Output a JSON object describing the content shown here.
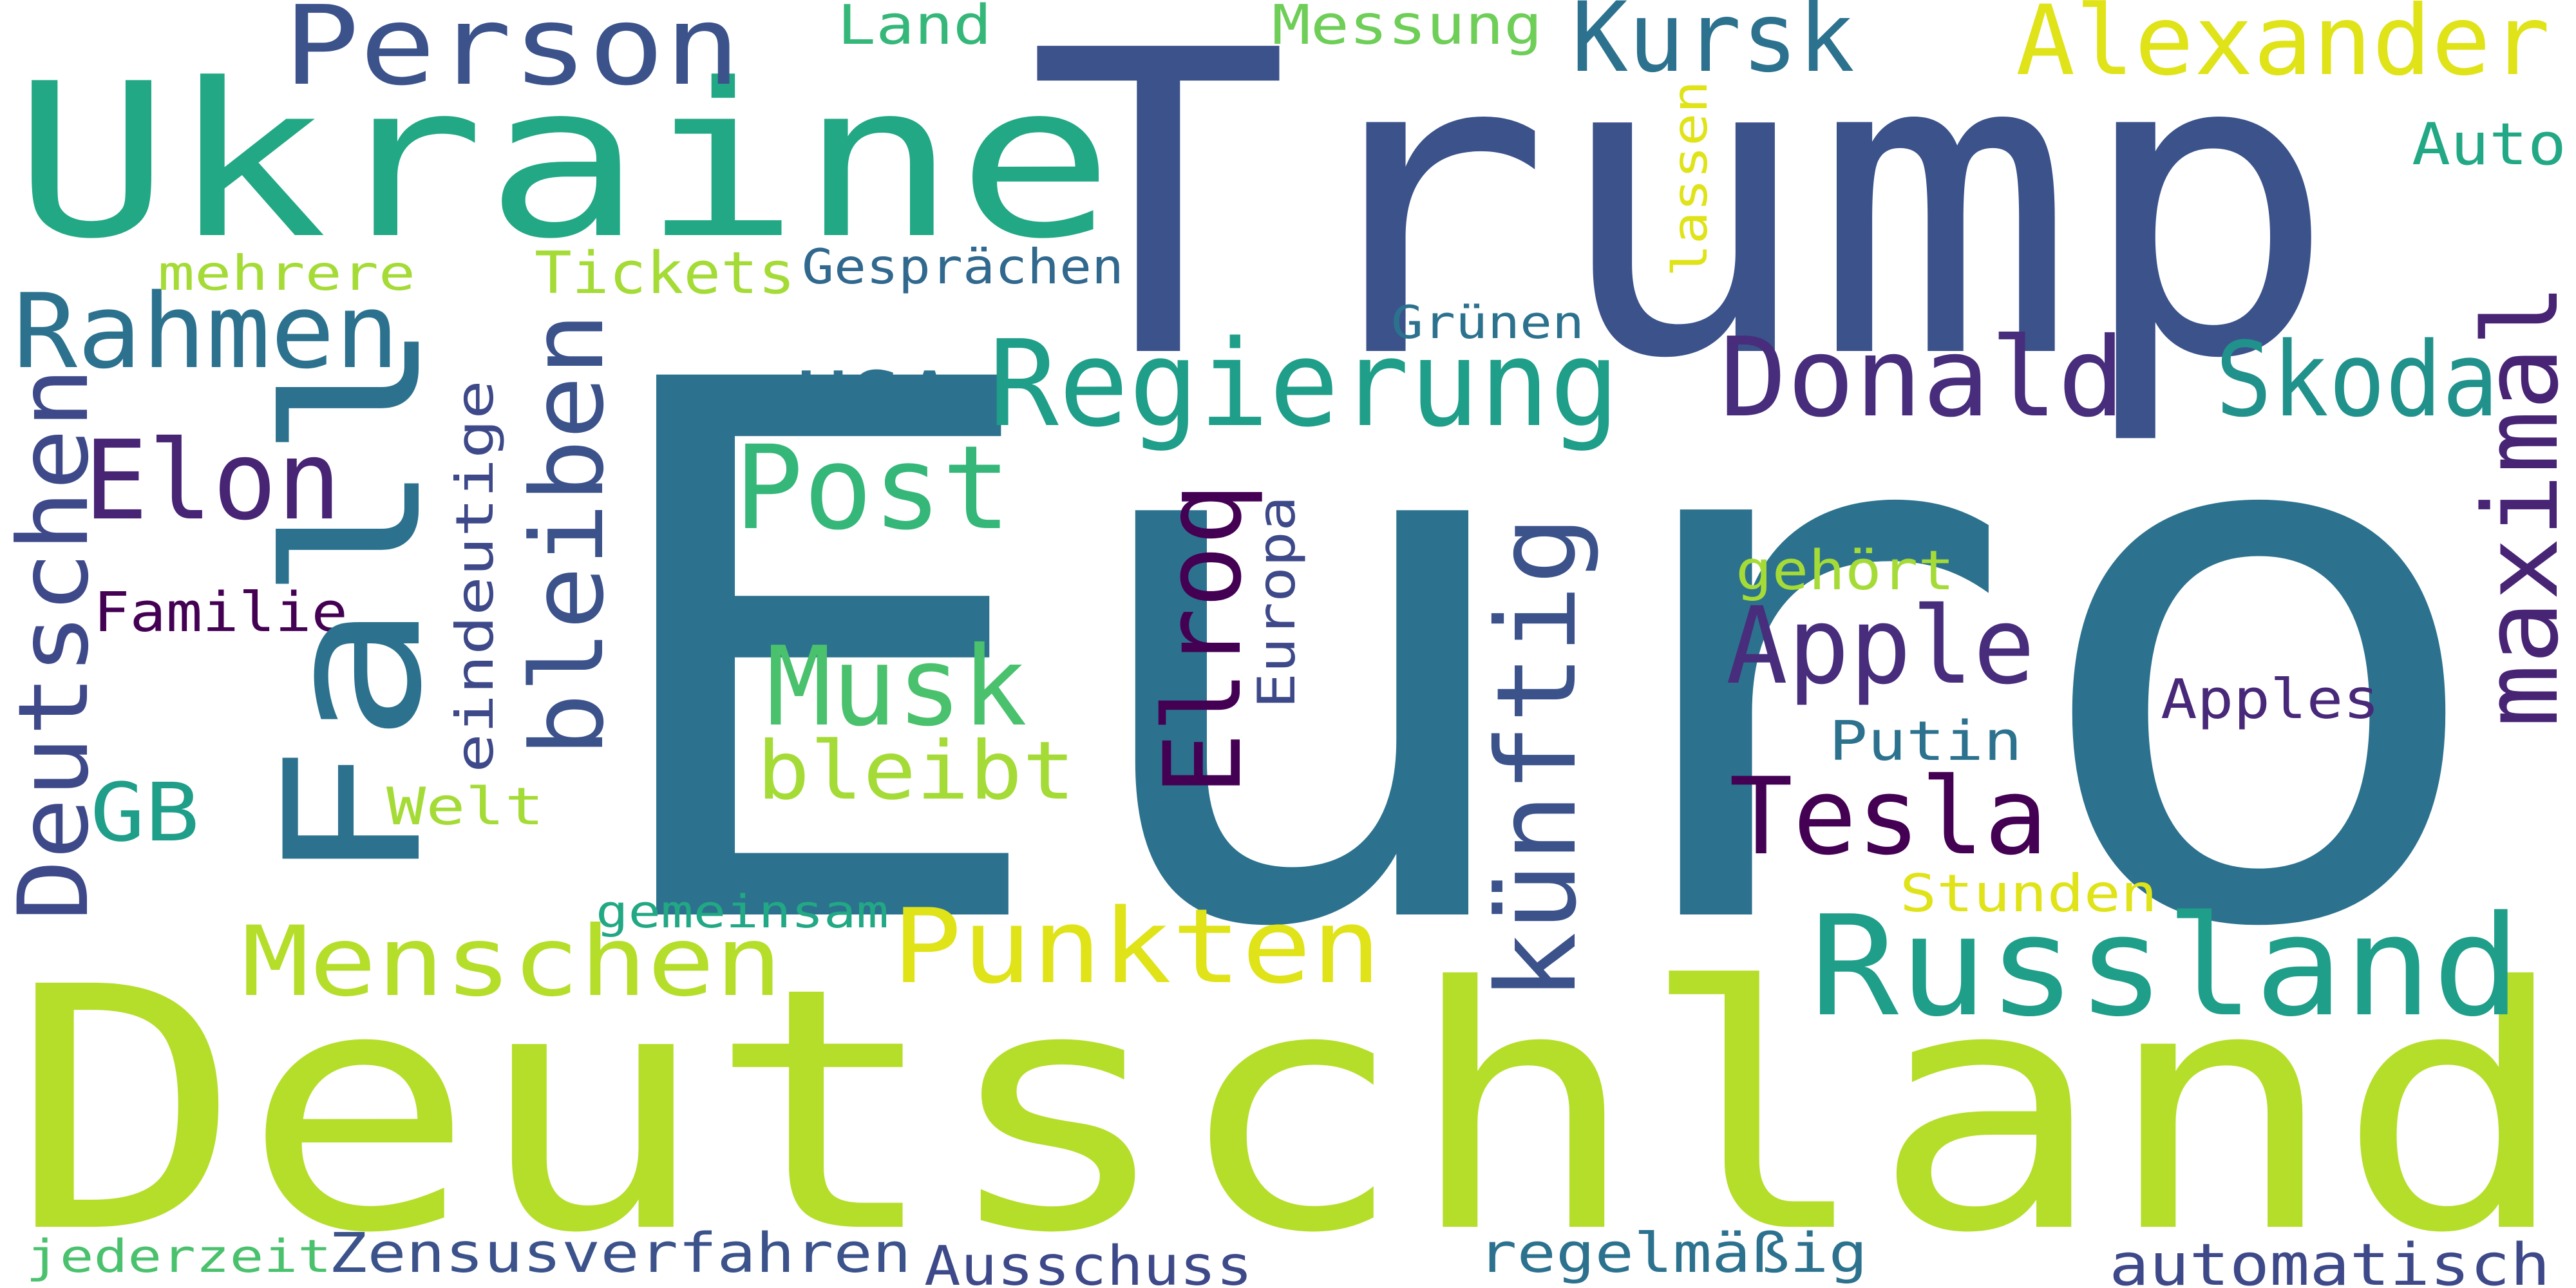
{
  "words": {
    "euro": {
      "text": "Euro",
      "color": "#2c728e"
    },
    "trump": {
      "text": "Trump",
      "color": "#3b528b"
    },
    "deutschland": {
      "text": "Deutschland",
      "color": "#b5de2b"
    },
    "ukraine": {
      "text": "Ukraine",
      "color": "#22a884"
    },
    "fall": {
      "text": "Fall",
      "color": "#2c728e"
    },
    "russland": {
      "text": "Russland",
      "color": "#1f9e89"
    },
    "regierung": {
      "text": "Regierung",
      "color": "#1f9e89"
    },
    "person": {
      "text": "Person",
      "color": "#3b528b"
    },
    "alexander": {
      "text": "Alexander",
      "color": "#dfe318"
    },
    "kursk": {
      "text": "Kursk",
      "color": "#2c728e"
    },
    "donald": {
      "text": "Donald",
      "color": "#472d7b"
    },
    "skoda": {
      "text": "Skoda",
      "color": "#21918c"
    },
    "rahmen": {
      "text": "Rahmen",
      "color": "#2c728e"
    },
    "elon": {
      "text": "Elon",
      "color": "#482475"
    },
    "post": {
      "text": "Post",
      "color": "#35b779"
    },
    "usa": {
      "text": "USA",
      "color": "#2c728e"
    },
    "musk": {
      "text": "Musk",
      "color": "#4ac16d"
    },
    "bleibt": {
      "text": "bleibt",
      "color": "#a5db36"
    },
    "apple": {
      "text": "Apple",
      "color": "#472d7b"
    },
    "tesla": {
      "text": "Tesla",
      "color": "#440154"
    },
    "menschen": {
      "text": "Menschen",
      "color": "#b5de2b"
    },
    "punkten": {
      "text": "Punkten",
      "color": "#dfe318"
    },
    "gb": {
      "text": "GB",
      "color": "#1f9e89"
    },
    "kuenftig": {
      "text": "künftig",
      "color": "#3b528b"
    },
    "deutschen": {
      "text": "Deutschen",
      "color": "#3e4989"
    },
    "bleiben": {
      "text": "bleiben",
      "color": "#3b528b"
    },
    "elroq": {
      "text": "Elroq",
      "color": "#440154"
    },
    "maximal": {
      "text": "maximal",
      "color": "#482475"
    },
    "eindeutige": {
      "text": "eindeutige",
      "color": "#3e4989"
    },
    "europa": {
      "text": "Europa",
      "color": "#3e4989"
    },
    "lassen": {
      "text": "lassen",
      "color": "#dfe318"
    },
    "land": {
      "text": "Land",
      "color": "#35b779"
    },
    "messung": {
      "text": "Messung",
      "color": "#6ece58"
    },
    "auto": {
      "text": "Auto",
      "color": "#22a884"
    },
    "mehrere": {
      "text": "mehrere",
      "color": "#a5db36"
    },
    "tickets": {
      "text": "Tickets",
      "color": "#a5db36"
    },
    "gespraechen": {
      "text": "Gesprächen",
      "color": "#31688e"
    },
    "gruenen": {
      "text": "Grünen",
      "color": "#2c728e"
    },
    "familie": {
      "text": "Familie",
      "color": "#440154"
    },
    "gehoert": {
      "text": "gehört",
      "color": "#a5db36"
    },
    "apples": {
      "text": "Apples",
      "color": "#482878"
    },
    "putin": {
      "text": "Putin",
      "color": "#2c728e"
    },
    "welt": {
      "text": "Welt",
      "color": "#a5db36"
    },
    "gemeinsam": {
      "text": "gemeinsam",
      "color": "#22a884"
    },
    "stunden": {
      "text": "Stunden",
      "color": "#dfe318"
    },
    "jederzeit": {
      "text": "jederzeit",
      "color": "#4ac16d"
    },
    "zensusverfahren": {
      "text": "Zensusverfahren",
      "color": "#3b528b"
    },
    "ausschuss": {
      "text": "Ausschuss",
      "color": "#3e4989"
    },
    "regelmaessig": {
      "text": "regelmäßig",
      "color": "#2c728e"
    },
    "automatisch": {
      "text": "automatisch",
      "color": "#3e4989"
    }
  }
}
